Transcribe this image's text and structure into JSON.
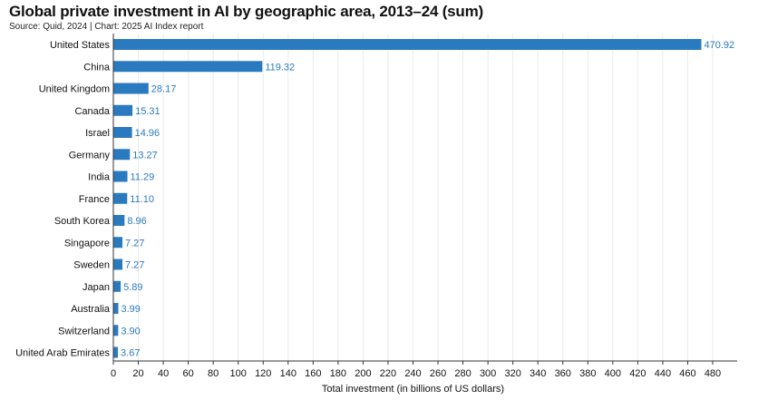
{
  "title": "Global private investment in AI by geographic area, 2013–24 (sum)",
  "subtitle": "Source: Quid, 2024 | Chart: 2025 AI Index report",
  "chart_data": {
    "type": "bar",
    "orientation": "horizontal",
    "title": "Global private investment in AI by geographic area, 2013–24 (sum)",
    "xlabel": "Total investment (in billions of US dollars)",
    "ylabel": "",
    "categories": [
      "United States",
      "China",
      "United Kingdom",
      "Canada",
      "Israel",
      "Germany",
      "India",
      "France",
      "South Korea",
      "Singapore",
      "Sweden",
      "Japan",
      "Australia",
      "Switzerland",
      "United Arab Emirates"
    ],
    "values": [
      470.92,
      119.32,
      28.17,
      15.31,
      14.96,
      13.27,
      11.29,
      11.1,
      8.96,
      7.27,
      7.27,
      5.89,
      3.99,
      3.9,
      3.67
    ],
    "value_labels": [
      "470.92",
      "119.32",
      "28.17",
      "15.31",
      "14.96",
      "13.27",
      "11.29",
      "11.10",
      "8.96",
      "7.27",
      "7.27",
      "5.89",
      "3.99",
      "3.90",
      "3.67"
    ],
    "xlim": [
      0,
      490
    ],
    "xticks": [
      0,
      20,
      40,
      60,
      80,
      100,
      120,
      140,
      160,
      180,
      200,
      220,
      240,
      260,
      280,
      300,
      320,
      340,
      360,
      380,
      400,
      420,
      440,
      460,
      480
    ],
    "grid": true,
    "bar_color": "#2a7abf",
    "label_color": "#2a7abf"
  }
}
